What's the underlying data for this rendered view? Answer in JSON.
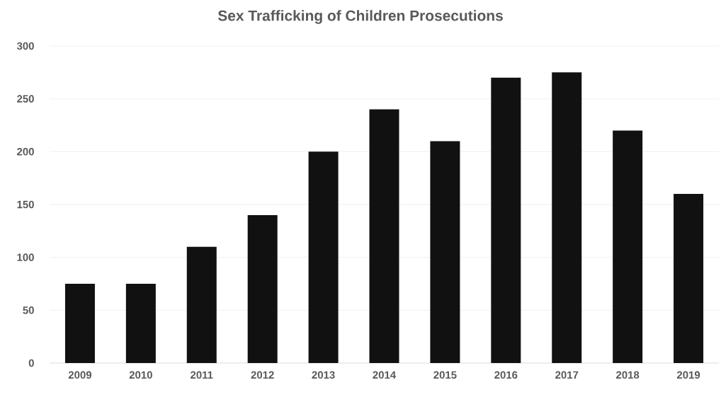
{
  "chart_data": {
    "type": "bar",
    "title": "Sex Trafficking of Children Prosecutions",
    "categories": [
      "2009",
      "2010",
      "2011",
      "2012",
      "2013",
      "2014",
      "2015",
      "2016",
      "2017",
      "2018",
      "2019"
    ],
    "values": [
      75,
      75,
      110,
      140,
      200,
      240,
      210,
      270,
      275,
      220,
      160
    ],
    "color": "#111111",
    "ylim": [
      0,
      300
    ],
    "yticks": [
      0,
      50,
      100,
      150,
      200,
      250,
      300
    ],
    "grid": "y"
  }
}
